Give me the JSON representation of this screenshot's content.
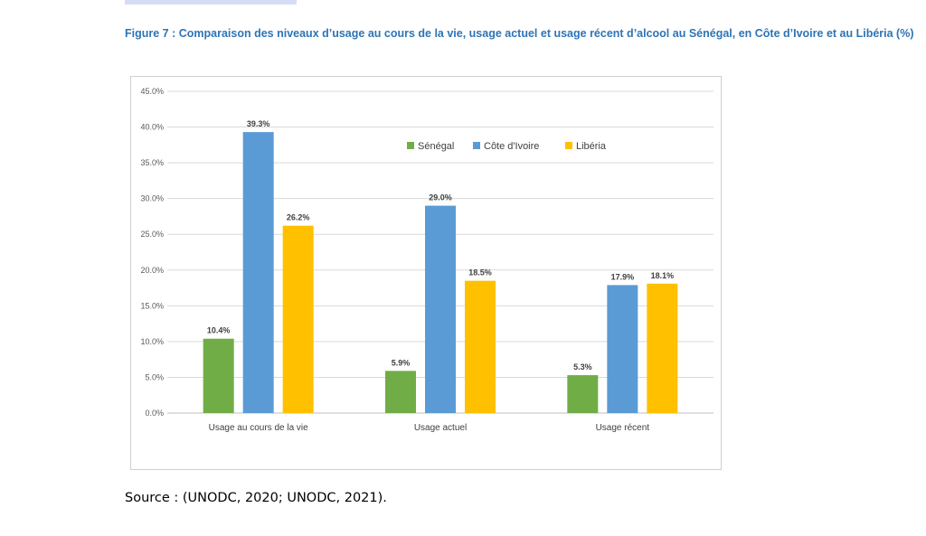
{
  "figure": {
    "caption": "Figure 7 : Comparaison des niveaux d’usage au cours de la vie, usage actuel et usage récent d’alcool au Sénégal, en Côte d’Ivoire et au Libéria (%)"
  },
  "source": {
    "text": "Source : (UNODC, 2020; UNODC, 2021)."
  },
  "chart_data": {
    "type": "bar",
    "categories": [
      "Usage au cours de la vie",
      "Usage actuel",
      "Usage récent"
    ],
    "series": [
      {
        "name": "Sénégal",
        "color": "#70ad47",
        "values": [
          10.4,
          5.9,
          5.3
        ],
        "labels": [
          "10.4%",
          "5.9%",
          "5.3%"
        ]
      },
      {
        "name": "Côte d'Ivoire",
        "color": "#5b9bd5",
        "values": [
          39.3,
          29.0,
          17.9
        ],
        "labels": [
          "39.3%",
          "29.0%",
          "17.9%"
        ]
      },
      {
        "name": "Libéria",
        "color": "#ffc000",
        "values": [
          26.2,
          18.5,
          18.1
        ],
        "labels": [
          "26.2%",
          "18.5%",
          "18.1%"
        ]
      }
    ],
    "ylim": [
      0,
      45
    ],
    "yticks": [
      0,
      5,
      10,
      15,
      20,
      25,
      30,
      35,
      40,
      45
    ],
    "ytick_labels": [
      "0.0%",
      "5.0%",
      "10.0%",
      "15.0%",
      "20.0%",
      "25.0%",
      "30.0%",
      "35.0%",
      "40.0%",
      "45.0%"
    ],
    "grid": true,
    "legend_position": "top-right",
    "title": "",
    "xlabel": "",
    "ylabel": ""
  }
}
